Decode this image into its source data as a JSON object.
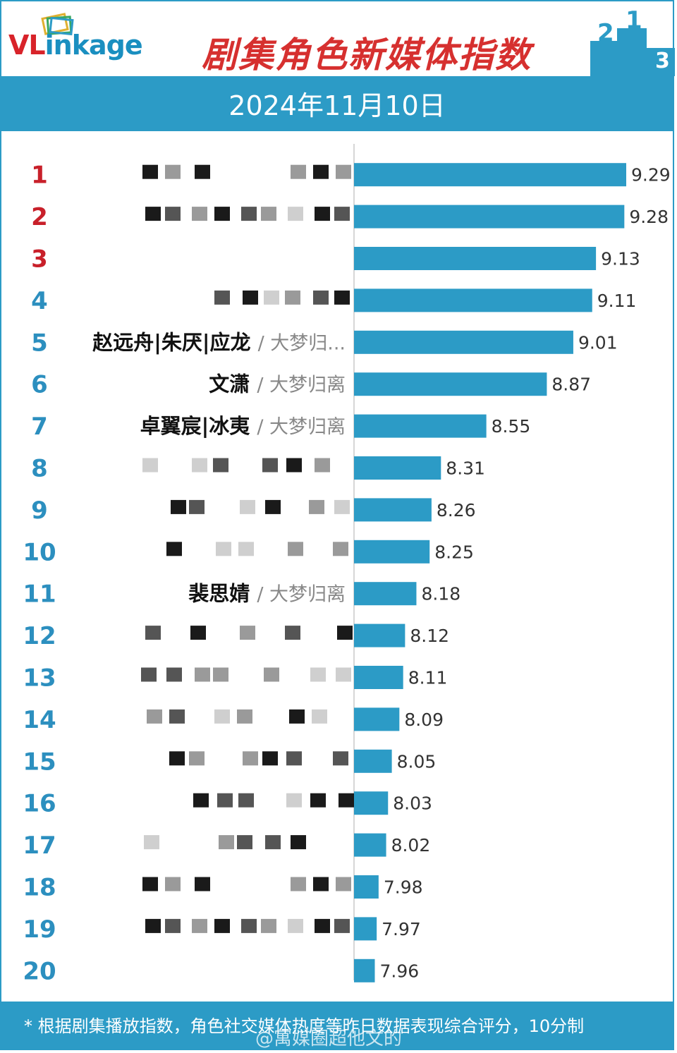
{
  "header": {
    "logo_text": "VLinkage",
    "logo_prefix": "VL",
    "logo_suffix": "inkage",
    "title": "剧集角色新媒体指数",
    "date": "2024年11月10日",
    "podium_ranks": [
      "2",
      "1",
      "3"
    ]
  },
  "colors": {
    "accent": "#2c9bc6",
    "bar": "#2c9bc6",
    "top3_rank": "#c8202a",
    "rank": "#2c8fbf",
    "title": "#d6302f"
  },
  "chart_data": {
    "type": "bar",
    "orientation": "horizontal",
    "categories": [
      "1",
      "2",
      "3",
      "4",
      "5",
      "6",
      "7",
      "8",
      "9",
      "10",
      "11",
      "12",
      "13",
      "14",
      "15",
      "16",
      "17",
      "18",
      "19",
      "20"
    ],
    "values": [
      9.29,
      9.28,
      9.13,
      9.11,
      9.01,
      8.87,
      8.55,
      8.31,
      8.26,
      8.25,
      8.18,
      8.12,
      8.11,
      8.09,
      8.05,
      8.03,
      8.02,
      7.98,
      7.97,
      7.96
    ],
    "labels": [
      {
        "name": "",
        "drama": ""
      },
      {
        "name": "",
        "drama": ""
      },
      {
        "name": "",
        "drama": ""
      },
      {
        "name": "",
        "drama": ""
      },
      {
        "name": "赵远舟|朱厌|应龙",
        "drama": "/ 大梦归..."
      },
      {
        "name": "文潇",
        "drama": "/ 大梦归离"
      },
      {
        "name": "卓翼宸|冰夷",
        "drama": "/ 大梦归离"
      },
      {
        "name": "",
        "drama": ""
      },
      {
        "name": "",
        "drama": ""
      },
      {
        "name": "",
        "drama": ""
      },
      {
        "name": "裴思婧",
        "drama": "/ 大梦归离"
      },
      {
        "name": "",
        "drama": ""
      },
      {
        "name": "",
        "drama": ""
      },
      {
        "name": "",
        "drama": ""
      },
      {
        "name": "",
        "drama": ""
      },
      {
        "name": "",
        "drama": ""
      },
      {
        "name": "",
        "drama": ""
      },
      {
        "name": "",
        "drama": ""
      },
      {
        "name": "",
        "drama": ""
      },
      {
        "name": "",
        "drama": ""
      }
    ],
    "redacted": [
      true,
      true,
      true,
      true,
      false,
      false,
      false,
      true,
      true,
      true,
      false,
      true,
      true,
      true,
      true,
      true,
      true,
      true,
      true,
      true
    ],
    "xlim": [
      7.85,
      9.29
    ],
    "grid": false,
    "legend": "none"
  },
  "footer": {
    "note": "* 根据剧集播放指数，角色社交媒体热度等昨日数据表现综合评分，10分制",
    "watermark": "@寓媒圈超他文的"
  }
}
